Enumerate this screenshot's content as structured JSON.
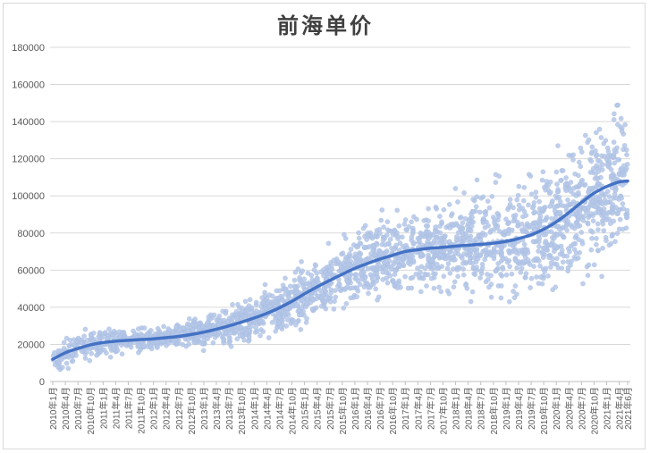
{
  "chart_data": {
    "type": "scatter",
    "title": "前海单价",
    "xlabel": "",
    "ylabel": "",
    "ylim": [
      0,
      180000
    ],
    "y_ticks": [
      "0",
      "20000",
      "40000",
      "60000",
      "80000",
      "100000",
      "120000",
      "140000",
      "160000",
      "180000"
    ],
    "x_ticks": [
      "2010年1月",
      "2010年4月",
      "2010年7月",
      "2010年10月",
      "2011年1月",
      "2011年4月",
      "2011年7月",
      "2011年10月",
      "2012年1月",
      "2012年4月",
      "2012年7月",
      "2012年10月",
      "2013年1月",
      "2013年4月",
      "2013年7月",
      "2013年10月",
      "2014年1月",
      "2014年4月",
      "2014年7月",
      "2014年10月",
      "2015年1月",
      "2015年4月",
      "2015年7月",
      "2015年10月",
      "2016年1月",
      "2016年4月",
      "2016年7月",
      "2016年10月",
      "2017年1月",
      "2017年4月",
      "2017年7月",
      "2017年10月",
      "2018年1月",
      "2018年4月",
      "2018年7月",
      "2018年10月",
      "2019年1月",
      "2019年4月",
      "2019年7月",
      "2019年10月",
      "2020年1月",
      "2020年4月",
      "2020年7月",
      "2020年10月",
      "2021年1月",
      "2021年4月",
      "2021年6月"
    ],
    "grid": true,
    "legend": "none",
    "colors": {
      "points": "#b4c7e7",
      "trend": "#4472c4"
    },
    "series": [
      {
        "type": "trend",
        "x": [
          0,
          3,
          6,
          9,
          12,
          15,
          18,
          21,
          24,
          27,
          30,
          33,
          36,
          39,
          42,
          45,
          48,
          51,
          54,
          57,
          60,
          63,
          66,
          69,
          72,
          75,
          78,
          81,
          84,
          87,
          90,
          93,
          96,
          99,
          102,
          105,
          108,
          111,
          114,
          117,
          120,
          123,
          126,
          129,
          132,
          135,
          137
        ],
        "values": [
          12000,
          15500,
          17800,
          19800,
          21000,
          21700,
          22200,
          22600,
          23000,
          23600,
          24300,
          25300,
          26600,
          28200,
          30000,
          32000,
          34200,
          36700,
          39700,
          43200,
          47200,
          51000,
          54500,
          57800,
          61000,
          63600,
          66000,
          68000,
          70000,
          71000,
          71800,
          72300,
          72900,
          73400,
          73900,
          74500,
          75500,
          77000,
          79000,
          82000,
          86000,
          91000,
          96500,
          101500,
          105000,
          107500,
          108000
        ]
      }
    ],
    "scatter_bands": {
      "x": [
        0,
        6,
        12,
        18,
        24,
        30,
        36,
        42,
        48,
        54,
        60,
        66,
        72,
        78,
        84,
        90,
        96,
        102,
        108,
        114,
        120,
        126,
        132,
        137
      ],
      "center": [
        12000,
        17800,
        21000,
        22200,
        23000,
        24300,
        26600,
        30000,
        34200,
        39700,
        47200,
        54500,
        61000,
        66000,
        70000,
        71800,
        72900,
        73900,
        75500,
        79000,
        86000,
        96500,
        105000,
        108000
      ],
      "spread": [
        6000,
        7000,
        7000,
        6000,
        5000,
        5500,
        7000,
        8000,
        9000,
        11000,
        13000,
        15000,
        16000,
        17000,
        18000,
        19000,
        21000,
        23000,
        24000,
        26000,
        30000,
        33000,
        34000,
        34000
      ]
    }
  }
}
